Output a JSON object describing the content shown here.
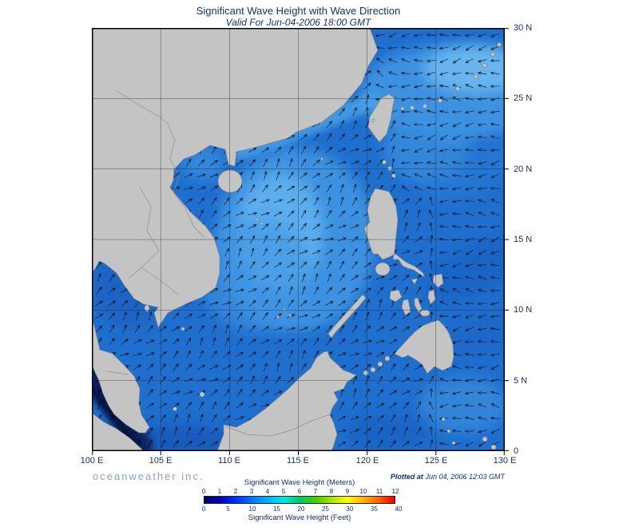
{
  "header": {
    "title": "Significant Wave Height with Wave Direction",
    "subtitle": "Valid For Jun-04-2006 18:00 GMT"
  },
  "axes": {
    "x_ticks": [
      "100 E",
      "105 E",
      "110 E",
      "115 E",
      "120 E",
      "125 E",
      "130 E"
    ],
    "y_ticks": [
      "30 N",
      "25 N",
      "20 N",
      "15 N",
      "10 N",
      "5 N",
      "0"
    ]
  },
  "footer": {
    "brand": "oceanweather inc.",
    "plotted_label": "Plotted at",
    "plotted_value": "Jun 04, 2006 12:03 GMT"
  },
  "legend": {
    "meters_label": "Significant Wave Height (Meters)",
    "feet_label": "Significant Wave Height (Feet)",
    "meters_ticks": [
      "0",
      "1",
      "2",
      "3",
      "4",
      "5",
      "6",
      "7",
      "8",
      "9",
      "10",
      "11",
      "12"
    ],
    "feet_ticks": [
      "0",
      "5",
      "10",
      "15",
      "20",
      "25",
      "30",
      "35",
      "40"
    ],
    "colorbar_stops": [
      "#000066",
      "#0000b4",
      "#0032ff",
      "#0078ff",
      "#00b4ff",
      "#00e6e6",
      "#00cc66",
      "#44cc00",
      "#a0e600",
      "#ffff00",
      "#ffb400",
      "#ff6400",
      "#f00000"
    ]
  },
  "map": {
    "colors": {
      "ocean": "#1e6fce",
      "land": "#c4c4c4",
      "shallow_light": "#5fb0ee",
      "deep_dark": "#041a5e"
    }
  }
}
